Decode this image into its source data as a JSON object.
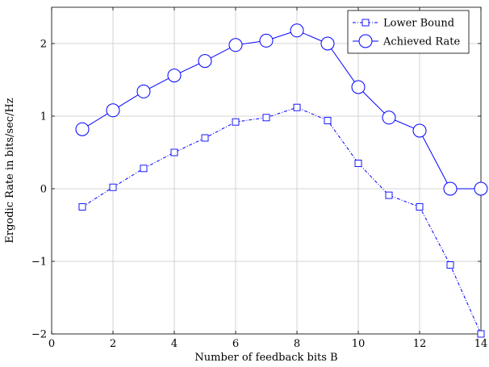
{
  "chart_data": {
    "type": "line",
    "title": "",
    "xlabel": "Number of feedback bits B",
    "ylabel": "Ergodic Rate in bits/sec/Hz",
    "xlim": [
      0,
      14
    ],
    "ylim": [
      -2,
      2.5
    ],
    "xticks": [
      0,
      2,
      4,
      6,
      8,
      10,
      12,
      14
    ],
    "xtick_labels": [
      "0",
      "2",
      "4",
      "6",
      "8",
      "10",
      "12",
      "14"
    ],
    "yticks": [
      -2,
      -1,
      0,
      1,
      2
    ],
    "ytick_labels": [
      "−2",
      "−1",
      "0",
      "1",
      "2"
    ],
    "grid": true,
    "legend_position": "top-right",
    "series": [
      {
        "name": "Lower Bound",
        "color": "#0000ff",
        "line_style": "dash-dot",
        "marker": "square",
        "x": [
          1,
          2,
          3,
          4,
          5,
          6,
          7,
          8,
          9,
          10,
          11,
          12,
          13,
          14
        ],
        "y": [
          -0.25,
          0.02,
          0.28,
          0.5,
          0.7,
          0.92,
          0.98,
          1.12,
          0.94,
          0.35,
          -0.09,
          -0.25,
          -1.05,
          -2.0
        ]
      },
      {
        "name": "Achieved Rate",
        "color": "#0000ff",
        "line_style": "solid",
        "marker": "circle",
        "x": [
          1,
          2,
          3,
          4,
          5,
          6,
          7,
          8,
          9,
          10,
          11,
          12,
          13,
          14
        ],
        "y": [
          0.82,
          1.08,
          1.34,
          1.56,
          1.76,
          1.98,
          2.04,
          2.18,
          2.0,
          1.4,
          0.98,
          0.8,
          0.0,
          0.0
        ]
      }
    ]
  }
}
